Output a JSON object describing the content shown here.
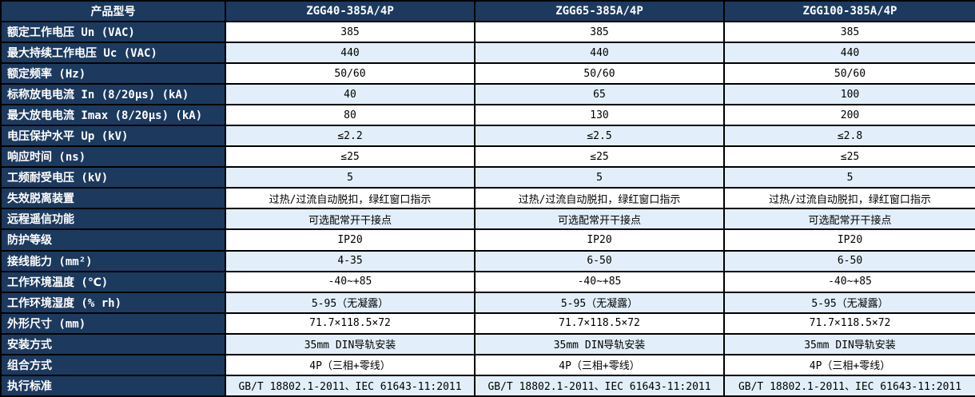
{
  "table": {
    "header": {
      "label": "产品型号",
      "columns": [
        "ZGG40-385A/4P",
        "ZGG65-385A/4P",
        "ZGG100-385A/4P"
      ]
    },
    "rows": [
      {
        "label": "额定工作电压 Un (VAC)",
        "values": [
          "385",
          "385",
          "385"
        ]
      },
      {
        "label": "最大持续工作电压 Uc (VAC)",
        "values": [
          "440",
          "440",
          "440"
        ]
      },
      {
        "label": "额定频率 (Hz)",
        "values": [
          "50/60",
          "50/60",
          "50/60"
        ]
      },
      {
        "label": "标称放电电流 In (8/20μs) (kA)",
        "values": [
          "40",
          "65",
          "100"
        ]
      },
      {
        "label": "最大放电电流 Imax (8/20μs) (kA)",
        "values": [
          "80",
          "130",
          "200"
        ]
      },
      {
        "label": "电压保护水平 Up (kV)",
        "values": [
          "≤2.2",
          "≤2.5",
          "≤2.8"
        ]
      },
      {
        "label": "响应时间 (ns)",
        "values": [
          "≤25",
          "≤25",
          "≤25"
        ]
      },
      {
        "label": "工频耐受电压 (kV)",
        "values": [
          "5",
          "5",
          "5"
        ]
      },
      {
        "label": "失效脱离装置",
        "values": [
          "过热/过流自动脱扣，绿红窗口指示",
          "过热/过流自动脱扣，绿红窗口指示",
          "过热/过流自动脱扣，绿红窗口指示"
        ]
      },
      {
        "label": "远程遥信功能",
        "values": [
          "可选配常开干接点",
          "可选配常开干接点",
          "可选配常开干接点"
        ]
      },
      {
        "label": "防护等级",
        "values": [
          "IP20",
          "IP20",
          "IP20"
        ]
      },
      {
        "label": "接线能力 (mm²)",
        "values": [
          "4-35",
          "6-50",
          "6-50"
        ]
      },
      {
        "label": "工作环境温度 (℃)",
        "values": [
          "-40~+85",
          "-40~+85",
          "-40~+85"
        ]
      },
      {
        "label": "工作环境湿度 (% rh)",
        "values": [
          "5-95（无凝露）",
          "5-95（无凝露）",
          "5-95（无凝露）"
        ]
      },
      {
        "label": "外形尺寸 (mm)",
        "values": [
          "71.7×118.5×72",
          "71.7×118.5×72",
          "71.7×118.5×72"
        ]
      },
      {
        "label": "安装方式",
        "values": [
          "35mm DIN导轨安装",
          "35mm DIN导轨安装",
          "35mm DIN导轨安装"
        ]
      },
      {
        "label": "组合方式",
        "values": [
          "4P（三相+零线）",
          "4P（三相+零线）",
          "4P（三相+零线）"
        ]
      },
      {
        "label": "执行标准",
        "values": [
          "GB/T 18802.1-2011、IEC 61643-11:2011",
          "GB/T 18802.1-2011、IEC 61643-11:2011",
          "GB/T 18802.1-2011、IEC 61643-11:2011"
        ]
      }
    ],
    "colors": {
      "header_bg": "#1c3a5e",
      "stripe_bg": "#e2effa",
      "row_bg": "#ffffff",
      "border": "#000000",
      "header_text": "#ffffff",
      "value_text": "#000000"
    }
  }
}
